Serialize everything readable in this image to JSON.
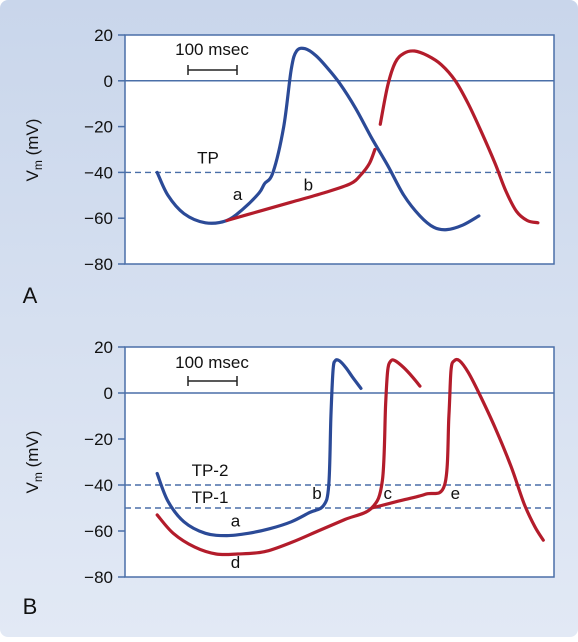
{
  "colors": {
    "frame_bg": "#c9d6eb",
    "plot_bg": "#ffffff",
    "axis": "#4a6fa8",
    "blue_trace": "#2b4a97",
    "red_trace": "#b31c2b",
    "threshold": "#4a6fa8"
  },
  "chart_data": [
    {
      "type": "line",
      "panel_label": "A",
      "ylabel_main": "V",
      "ylabel_sub": "m",
      "ylabel_unit": "(mV)",
      "ylim": [
        -80,
        20
      ],
      "yticks": [
        20,
        0,
        -20,
        -40,
        -60,
        -80
      ],
      "ytick_labels": [
        "20",
        "0",
        "−20",
        "−40",
        "−60",
        "−80"
      ],
      "scale_bar_label": "100 msec",
      "thresholds": [
        {
          "label": "TP",
          "value": -40
        }
      ],
      "zero_line": 0,
      "point_labels": [
        {
          "label": "a",
          "x": 1.05,
          "y": -52
        },
        {
          "label": "b",
          "x": 1.71,
          "y": -48
        }
      ],
      "series": [
        {
          "color": "blue",
          "x": [
            0.3,
            0.4,
            0.55,
            0.75,
            0.95,
            1.1,
            1.25,
            1.3,
            1.38,
            1.48,
            1.55,
            1.6,
            1.68,
            1.78,
            1.88,
            2.0,
            2.15,
            2.3,
            2.45,
            2.6,
            2.75,
            2.88,
            3.0,
            3.15,
            3.3
          ],
          "y": [
            -40,
            -50,
            -58,
            -62,
            -61,
            -56,
            -49,
            -45,
            -40,
            -20,
            5,
            13,
            14,
            11,
            6,
            -1,
            -12,
            -25,
            -37,
            -50,
            -59,
            -64,
            -65,
            -63,
            -59
          ]
        },
        {
          "color": "red",
          "x": [
            0.95,
            1.25,
            1.55,
            1.85,
            2.1,
            2.2,
            2.28,
            2.33
          ],
          "y": [
            -61,
            -57,
            -53,
            -49,
            -45,
            -41,
            -36,
            -30
          ]
        },
        {
          "color": "red",
          "x": [
            2.38,
            2.45,
            2.52,
            2.6,
            2.7,
            2.82,
            2.95,
            3.08,
            3.2,
            3.32,
            3.45,
            3.55,
            3.65,
            3.75,
            3.85
          ],
          "y": [
            -19,
            -2,
            8,
            12,
            13,
            11,
            7,
            0,
            -10,
            -22,
            -36,
            -48,
            -57,
            -61,
            -62
          ]
        }
      ]
    },
    {
      "type": "line",
      "panel_label": "B",
      "ylabel_main": "V",
      "ylabel_sub": "m",
      "ylabel_unit": "(mV)",
      "ylim": [
        -80,
        20
      ],
      "yticks": [
        20,
        0,
        -20,
        -40,
        -60,
        -80
      ],
      "ytick_labels": [
        "20",
        "0",
        "−20",
        "−40",
        "−60",
        "−80"
      ],
      "scale_bar_label": "100 msec",
      "thresholds": [
        {
          "label": "TP-2",
          "value": -40
        },
        {
          "label": "TP-1",
          "value": -50
        }
      ],
      "zero_line": 0,
      "point_labels": [
        {
          "label": "a",
          "x": 1.03,
          "y": -58
        },
        {
          "label": "b",
          "x": 1.79,
          "y": -46
        },
        {
          "label": "c",
          "x": 2.45,
          "y": -46
        },
        {
          "label": "d",
          "x": 1.03,
          "y": -76
        },
        {
          "label": "e",
          "x": 3.08,
          "y": -46
        }
      ],
      "series": [
        {
          "color": "blue",
          "x": [
            0.3,
            0.4,
            0.55,
            0.75,
            0.95,
            1.15,
            1.35,
            1.55,
            1.72,
            1.85,
            1.9,
            1.92,
            1.94,
            1.96,
            2.0,
            2.06,
            2.12,
            2.2
          ],
          "y": [
            -35,
            -47,
            -56,
            -61,
            -62,
            -61,
            -59,
            -56,
            -52,
            -49,
            -40,
            -10,
            10,
            14,
            14,
            11,
            7,
            2
          ]
        },
        {
          "color": "red",
          "x": [
            0.3,
            0.45,
            0.65,
            0.85,
            1.05,
            1.3,
            1.55,
            1.8,
            2.05,
            2.3,
            2.4,
            2.43,
            2.45,
            2.48,
            2.52,
            2.6,
            2.68,
            2.75
          ],
          "y": [
            -53,
            -61,
            -67,
            -70,
            -70,
            -69,
            -65,
            -60,
            -55,
            -50,
            -38,
            -5,
            10,
            14,
            14,
            11,
            7,
            3
          ]
        },
        {
          "color": "red",
          "x": [
            2.3,
            2.55,
            2.8,
            2.98,
            3.02,
            3.04,
            3.07,
            3.12,
            3.2,
            3.3,
            3.45,
            3.6,
            3.72,
            3.82,
            3.9
          ],
          "y": [
            -50,
            -47,
            -44,
            -40,
            -10,
            10,
            14,
            14,
            9,
            0,
            -15,
            -32,
            -48,
            -58,
            -64
          ]
        }
      ]
    }
  ]
}
